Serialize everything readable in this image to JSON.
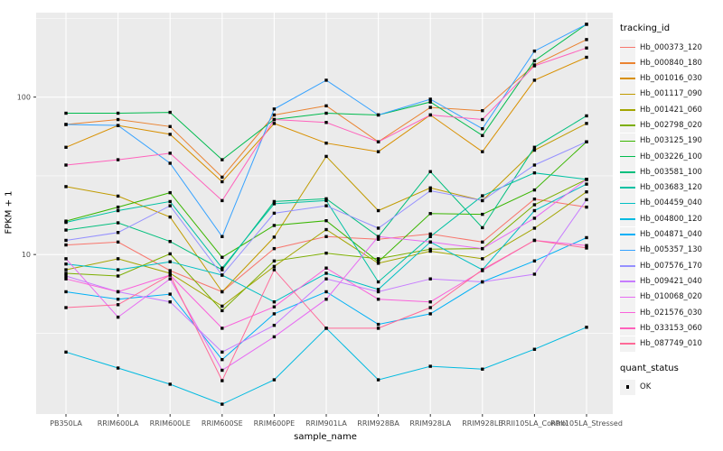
{
  "chart_data": {
    "type": "line",
    "title": "",
    "xlabel": "sample_name",
    "ylabel": "FPKM + 1",
    "y_scale": "log10",
    "ylim": [
      0.97,
      344
    ],
    "grid": true,
    "legend_position": "right",
    "y_ticks": [
      {
        "value": 10,
        "label": "10"
      },
      {
        "value": 100,
        "label": "100"
      }
    ],
    "y_minor": [
      3.162,
      31.62,
      316.2
    ],
    "categories": [
      "PB350LA",
      "RRIM600LA",
      "RRIM600LE",
      "RRIM600SE",
      "RRIM600PE",
      "RRIM901LA",
      "RRIM928BA",
      "RRIM928LA",
      "RRIM928LE",
      "RRII105LA_Control",
      "RRII105LA_Stressed"
    ],
    "point_marker": {
      "shape": "square",
      "color": "#000000",
      "size": 3.4
    },
    "legend": {
      "color_title": "tracking_id",
      "shape_title": "quant_status",
      "shape_items": [
        {
          "label": "OK",
          "marker": "black-square"
        }
      ]
    },
    "series": [
      {
        "name": "Hb_000373_120",
        "color": "#F8766D",
        "values": [
          11.5,
          12.0,
          7.9,
          5.8,
          10.9,
          13.0,
          12.5,
          13.5,
          12.0,
          22.5,
          20.0
        ]
      },
      {
        "name": "Hb_000840_180",
        "color": "#EA8331",
        "values": [
          67,
          72,
          65,
          31,
          77,
          88,
          52,
          86,
          82,
          160,
          232
        ]
      },
      {
        "name": "Hb_001016_030",
        "color": "#D89000",
        "values": [
          48,
          66,
          58,
          29,
          68,
          51,
          45,
          77,
          45,
          128,
          179
        ]
      },
      {
        "name": "Hb_001117_090",
        "color": "#C09B00",
        "values": [
          27,
          23.5,
          17.3,
          5.8,
          12.9,
          42,
          19,
          26.5,
          22,
          46,
          68
        ]
      },
      {
        "name": "Hb_001421_060",
        "color": "#A3A500",
        "values": [
          8.0,
          9.4,
          7.6,
          4.7,
          8.4,
          14.4,
          8.8,
          10.5,
          9.4,
          14.7,
          25
        ]
      },
      {
        "name": "Hb_002798_020",
        "color": "#7CAE00",
        "values": [
          7.6,
          7.3,
          10.1,
          4.4,
          9.1,
          10.2,
          9.4,
          10.8,
          10.9,
          20.7,
          30
        ]
      },
      {
        "name": "Hb_003125_190",
        "color": "#39B600",
        "values": [
          16.3,
          20,
          24.7,
          9.6,
          15.3,
          16.4,
          9.0,
          18.2,
          18.0,
          25.7,
          52
        ]
      },
      {
        "name": "Hb_003226_100",
        "color": "#00BB4E",
        "values": [
          79,
          79,
          80,
          40,
          72,
          79,
          77,
          93,
          57,
          170,
          290
        ]
      },
      {
        "name": "Hb_003581_100",
        "color": "#00BF7D",
        "values": [
          14.3,
          15.9,
          12.1,
          8.0,
          21.7,
          22.6,
          13.0,
          33.6,
          14.8,
          48,
          76
        ]
      },
      {
        "name": "Hb_003683_120",
        "color": "#00C1A3",
        "values": [
          16.0,
          19.0,
          21.7,
          8.2,
          21.0,
          22.0,
          6.7,
          13.0,
          23.6,
          33,
          30
        ]
      },
      {
        "name": "Hb_004459_040",
        "color": "#00BFC4",
        "values": [
          8.7,
          8.0,
          9.0,
          7.4,
          5.0,
          7.6,
          6.0,
          12.0,
          8.0,
          19.0,
          28
        ]
      },
      {
        "name": "Hb_004800_120",
        "color": "#00BAE0",
        "values": [
          2.4,
          1.9,
          1.5,
          1.12,
          1.6,
          3.4,
          1.6,
          1.95,
          1.87,
          2.5,
          3.45
        ]
      },
      {
        "name": "Hb_004871_040",
        "color": "#00B0F6",
        "values": [
          5.8,
          5.2,
          5.6,
          2.15,
          4.2,
          5.8,
          3.6,
          4.2,
          6.7,
          9.1,
          12.8
        ]
      },
      {
        "name": "Hb_005357_130",
        "color": "#35A2FF",
        "values": [
          67,
          66,
          38,
          13,
          84,
          128,
          77,
          97,
          63,
          196,
          290
        ]
      },
      {
        "name": "Hb_007576_170",
        "color": "#9590FF",
        "values": [
          12.3,
          13.8,
          20.4,
          7.4,
          18.3,
          20.4,
          14.7,
          25.4,
          22,
          37,
          52
        ]
      },
      {
        "name": "Hb_009421_040",
        "color": "#C77CFF",
        "values": [
          7.3,
          5.8,
          5.0,
          2.4,
          3.55,
          7.0,
          5.8,
          7.0,
          6.7,
          7.5,
          22.3
        ]
      },
      {
        "name": "Hb_010068_020",
        "color": "#E76BF3",
        "values": [
          9.4,
          4.0,
          7.0,
          1.84,
          3.0,
          5.2,
          13.0,
          12.0,
          10.9,
          17.0,
          30
        ]
      },
      {
        "name": "Hb_021576_030",
        "color": "#FA62DB",
        "values": [
          7.0,
          5.8,
          7.4,
          3.4,
          4.65,
          8.2,
          5.2,
          5.0,
          7.9,
          12.3,
          11.4
        ]
      },
      {
        "name": "Hb_033153_060",
        "color": "#FF62BC",
        "values": [
          37,
          40,
          44,
          22,
          72,
          69,
          52,
          77,
          72,
          158,
          205
        ]
      },
      {
        "name": "Hb_087749_010",
        "color": "#FF6A98",
        "values": [
          4.6,
          4.8,
          7.4,
          1.58,
          8.0,
          3.4,
          3.4,
          4.6,
          8.0,
          12.3,
          11.0
        ]
      }
    ],
    "colors": {
      "panel_bg": "#EBEBEB",
      "grid": "#FFFFFF",
      "tick_mark": "#333333",
      "tick_label": "#4D4D4D",
      "legend_key_bg": "#F2F2F2"
    }
  }
}
